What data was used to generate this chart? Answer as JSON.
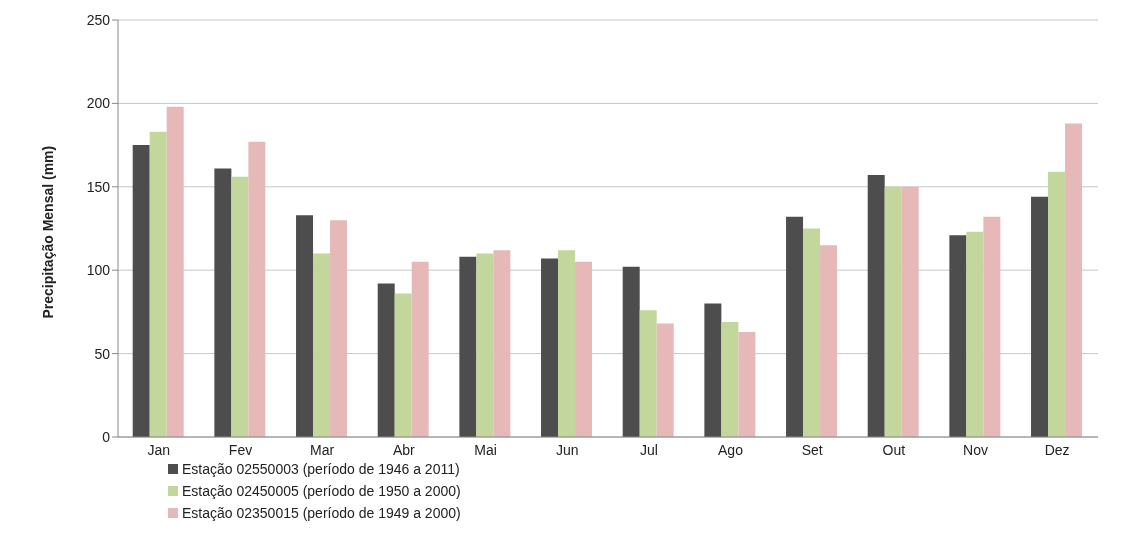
{
  "chart_data": {
    "type": "bar",
    "ylabel": "Precipitação Mensal (mm)",
    "categories": [
      "Jan",
      "Fev",
      "Mar",
      "Abr",
      "Mai",
      "Jun",
      "Jul",
      "Ago",
      "Set",
      "Out",
      "Nov",
      "Dez"
    ],
    "series": [
      {
        "name": "Estação 02550003 (período de 1946 a 2011)",
        "color": "#4d4d4d",
        "values": [
          175,
          161,
          133,
          92,
          108,
          107,
          102,
          80,
          132,
          157,
          121,
          144
        ]
      },
      {
        "name": "Estação 02450005 (período de 1950 a 2000)",
        "color": "#c3d69b",
        "values": [
          183,
          156,
          110,
          86,
          110,
          112,
          76,
          69,
          125,
          150,
          123,
          159
        ]
      },
      {
        "name": "Estação 02350015 (período de 1949 a 2000)",
        "color": "#e6b9b8",
        "values": [
          198,
          177,
          130,
          105,
          112,
          105,
          68,
          63,
          115,
          150,
          132,
          188
        ]
      }
    ],
    "ylim": [
      0,
      250
    ],
    "yticks": [
      0,
      50,
      100,
      150,
      200,
      250
    ],
    "grid": "y",
    "legend": "bottom left"
  }
}
